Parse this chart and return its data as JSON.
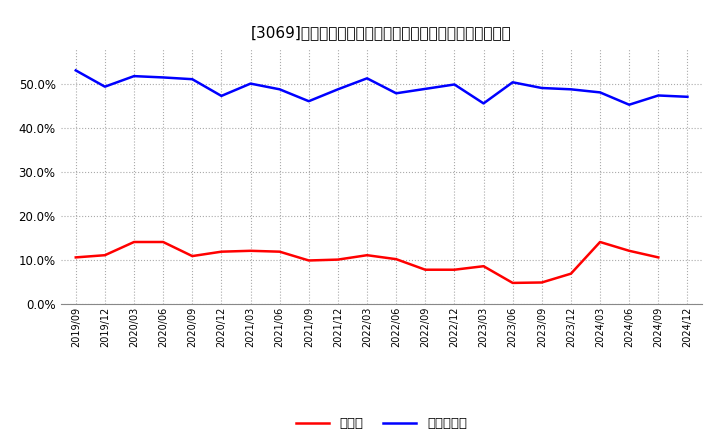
{
  "title": "[3069]　現頰金、有利子負債の総資産に対する比率の推移",
  "x_labels": [
    "2019/09",
    "2019/12",
    "2020/03",
    "2020/06",
    "2020/09",
    "2020/12",
    "2021/03",
    "2021/06",
    "2021/09",
    "2021/12",
    "2022/03",
    "2022/06",
    "2022/09",
    "2022/12",
    "2023/03",
    "2023/06",
    "2023/09",
    "2023/12",
    "2024/03",
    "2024/06",
    "2024/09",
    "2024/12"
  ],
  "cash_ratio": [
    0.105,
    0.11,
    0.14,
    0.14,
    0.108,
    0.118,
    0.12,
    0.118,
    0.098,
    0.1,
    0.11,
    0.101,
    0.077,
    0.077,
    0.085,
    0.047,
    0.048,
    0.068,
    0.14,
    0.12,
    0.105,
    null
  ],
  "debt_ratio": [
    0.53,
    0.493,
    0.517,
    0.514,
    0.51,
    0.472,
    0.5,
    0.487,
    0.46,
    0.487,
    0.512,
    0.478,
    0.488,
    0.498,
    0.455,
    0.503,
    0.49,
    0.487,
    0.48,
    0.452,
    0.473,
    0.47
  ],
  "cash_color": "#ff0000",
  "debt_color": "#0000ff",
  "bg_color": "#ffffff",
  "plot_bg_color": "#ffffff",
  "grid_color": "#aaaaaa",
  "ylim": [
    0.0,
    0.58
  ],
  "yticks": [
    0.0,
    0.1,
    0.2,
    0.3,
    0.4,
    0.5
  ],
  "legend_cash": "現頰金",
  "legend_debt": "有利子負債",
  "title_fontsize": 11,
  "line_width": 1.8
}
